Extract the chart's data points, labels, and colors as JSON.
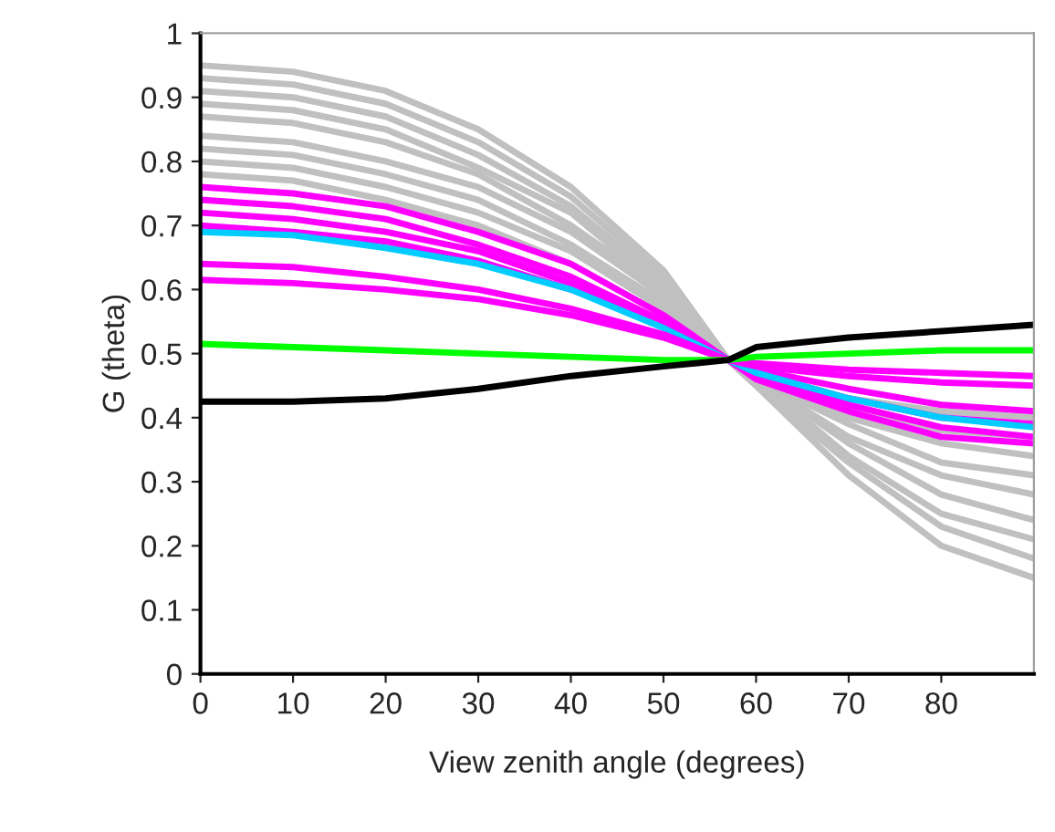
{
  "chart_data": {
    "type": "line",
    "xlabel": "View zenith angle (degrees)",
    "ylabel": "G (theta)",
    "x": [
      0,
      10,
      20,
      30,
      40,
      50,
      57,
      60,
      70,
      80,
      90
    ],
    "xlim": [
      0,
      90
    ],
    "xticks": [
      0,
      10,
      20,
      30,
      40,
      50,
      60,
      70,
      80
    ],
    "ylim": [
      0,
      1
    ],
    "yticks": [
      0,
      0.1,
      0.2,
      0.3,
      0.4,
      0.5,
      0.6,
      0.7,
      0.8,
      0.9,
      1
    ],
    "grid": false,
    "legend": false,
    "marker": "none",
    "line_style": "solid",
    "series": [
      {
        "color": "#c0c0c0",
        "values": [
          0.95,
          0.94,
          0.91,
          0.85,
          0.76,
          0.63,
          0.49,
          0.45,
          0.31,
          0.2,
          0.15
        ]
      },
      {
        "color": "#c0c0c0",
        "values": [
          0.93,
          0.92,
          0.89,
          0.83,
          0.745,
          0.62,
          0.49,
          0.45,
          0.33,
          0.23,
          0.18
        ]
      },
      {
        "color": "#c0c0c0",
        "values": [
          0.91,
          0.9,
          0.87,
          0.81,
          0.73,
          0.61,
          0.49,
          0.46,
          0.34,
          0.25,
          0.21
        ]
      },
      {
        "color": "#c0c0c0",
        "values": [
          0.89,
          0.88,
          0.85,
          0.79,
          0.72,
          0.6,
          0.49,
          0.46,
          0.36,
          0.28,
          0.24
        ]
      },
      {
        "color": "#c0c0c0",
        "values": [
          0.87,
          0.86,
          0.83,
          0.78,
          0.7,
          0.6,
          0.49,
          0.46,
          0.37,
          0.31,
          0.28
        ]
      },
      {
        "color": "#c0c0c0",
        "values": [
          0.84,
          0.83,
          0.8,
          0.76,
          0.69,
          0.59,
          0.49,
          0.46,
          0.39,
          0.33,
          0.31
        ]
      },
      {
        "color": "#c0c0c0",
        "values": [
          0.82,
          0.81,
          0.78,
          0.74,
          0.67,
          0.58,
          0.49,
          0.47,
          0.4,
          0.36,
          0.34
        ]
      },
      {
        "color": "#c0c0c0",
        "values": [
          0.8,
          0.79,
          0.76,
          0.72,
          0.66,
          0.57,
          0.49,
          0.47,
          0.42,
          0.38,
          0.37
        ]
      },
      {
        "color": "#c0c0c0",
        "values": [
          0.78,
          0.77,
          0.74,
          0.7,
          0.64,
          0.56,
          0.49,
          0.47,
          0.43,
          0.41,
          0.4
        ]
      },
      {
        "color": "#ff00ff",
        "values": [
          0.76,
          0.75,
          0.73,
          0.69,
          0.64,
          0.56,
          0.49,
          0.46,
          0.41,
          0.37,
          0.36
        ]
      },
      {
        "color": "#ff00ff",
        "values": [
          0.74,
          0.73,
          0.71,
          0.67,
          0.62,
          0.55,
          0.49,
          0.465,
          0.42,
          0.385,
          0.37
        ]
      },
      {
        "color": "#ff00ff",
        "values": [
          0.72,
          0.71,
          0.69,
          0.66,
          0.61,
          0.55,
          0.49,
          0.47,
          0.43,
          0.4,
          0.39
        ]
      },
      {
        "color": "#ff00ff",
        "values": [
          0.7,
          0.69,
          0.675,
          0.645,
          0.6,
          0.545,
          0.49,
          0.475,
          0.445,
          0.42,
          0.41
        ]
      },
      {
        "color": "#00ccff",
        "values": [
          0.69,
          0.685,
          0.665,
          0.64,
          0.6,
          0.54,
          0.49,
          0.47,
          0.43,
          0.4,
          0.385
        ]
      },
      {
        "color": "#ff00ff",
        "values": [
          0.64,
          0.635,
          0.62,
          0.6,
          0.57,
          0.53,
          0.49,
          0.48,
          0.465,
          0.455,
          0.45
        ]
      },
      {
        "color": "#ff00ff",
        "values": [
          0.615,
          0.61,
          0.6,
          0.585,
          0.56,
          0.525,
          0.49,
          0.485,
          0.475,
          0.47,
          0.465
        ]
      },
      {
        "color": "#00ff00",
        "values": [
          0.515,
          0.51,
          0.505,
          0.5,
          0.495,
          0.49,
          0.49,
          0.495,
          0.5,
          0.505,
          0.505
        ]
      },
      {
        "color": "#000000",
        "values": [
          0.425,
          0.425,
          0.43,
          0.445,
          0.465,
          0.48,
          0.49,
          0.51,
          0.525,
          0.535,
          0.545
        ]
      }
    ]
  }
}
